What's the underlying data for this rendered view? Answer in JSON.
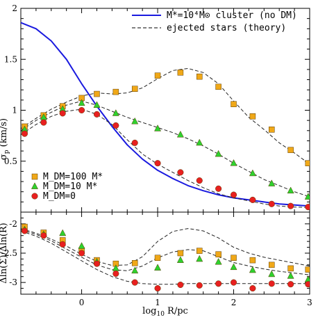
{
  "chart_data": [
    {
      "type": "scatter",
      "panel": "top",
      "xlabel": "",
      "ylabel": "σ_p (km/s)",
      "xlim": [
        -0.8,
        3.0
      ],
      "ylim": [
        0.0,
        2.0
      ],
      "x_ticks": [
        "0",
        "1",
        "2",
        "3"
      ],
      "y_ticks": [
        "0.5",
        "1",
        "1.5",
        "2"
      ],
      "legend_lines": [
        {
          "label": "M*=10⁴M⊙ cluster (no DM)",
          "style": "solid",
          "color": "#1a1adf"
        },
        {
          "label": "ejected stars (theory)",
          "style": "dashed",
          "color": "#000000"
        }
      ],
      "legend_markers": [
        {
          "label": "M_DM=100 M*",
          "marker": "square",
          "color": "#f0a818"
        },
        {
          "label": "M_DM=10 M*",
          "marker": "triangle",
          "color": "#2ed12e"
        },
        {
          "label": "M_DM=0",
          "marker": "circle",
          "color": "#e82020"
        }
      ],
      "series": [
        {
          "name": "M_DM=100 M*",
          "marker": "square",
          "x": [
            -0.75,
            -0.5,
            -0.25,
            0.0,
            0.2,
            0.45,
            0.7,
            1.0,
            1.3,
            1.55,
            1.8,
            2.0,
            2.25,
            2.5,
            2.75,
            2.98
          ],
          "y": [
            0.84,
            0.95,
            1.04,
            1.12,
            1.16,
            1.18,
            1.21,
            1.34,
            1.37,
            1.33,
            1.23,
            1.06,
            0.94,
            0.81,
            0.61,
            0.48
          ]
        },
        {
          "name": "M_DM=10 M*",
          "marker": "triangle",
          "x": [
            -0.75,
            -0.5,
            -0.25,
            0.0,
            0.2,
            0.45,
            0.7,
            1.0,
            1.3,
            1.55,
            1.8,
            2.0,
            2.25,
            2.5,
            2.75,
            2.98
          ],
          "y": [
            0.81,
            0.93,
            1.01,
            1.07,
            1.05,
            0.97,
            0.89,
            0.82,
            0.76,
            0.68,
            0.57,
            0.48,
            0.38,
            0.28,
            0.21,
            0.15
          ]
        },
        {
          "name": "M_DM=0",
          "marker": "circle",
          "x": [
            -0.75,
            -0.5,
            -0.25,
            0.0,
            0.2,
            0.45,
            0.7,
            1.0,
            1.3,
            1.55,
            1.8,
            2.0,
            2.25,
            2.5,
            2.75,
            2.98
          ],
          "y": [
            0.77,
            0.88,
            0.97,
            1.0,
            0.96,
            0.85,
            0.68,
            0.48,
            0.39,
            0.31,
            0.23,
            0.17,
            0.12,
            0.08,
            0.06,
            0.05
          ]
        },
        {
          "name": "M*=10⁴M⊙ cluster (no DM)",
          "line": "solid",
          "x": [
            -0.8,
            -0.6,
            -0.4,
            -0.2,
            0.0,
            0.2,
            0.4,
            0.6,
            0.8,
            1.0,
            1.2,
            1.4,
            1.6,
            1.8,
            2.0,
            2.2,
            2.4,
            2.6,
            2.8,
            3.0
          ],
          "y": [
            1.86,
            1.8,
            1.68,
            1.5,
            1.26,
            1.04,
            0.84,
            0.66,
            0.52,
            0.41,
            0.33,
            0.26,
            0.21,
            0.17,
            0.14,
            0.12,
            0.1,
            0.08,
            0.07,
            0.06
          ]
        },
        {
          "name": "",
          "line": "dashed",
          "x": [
            -0.8,
            -0.6,
            -0.4,
            -0.2,
            0.0,
            0.2,
            0.4,
            0.6,
            0.8,
            1.0,
            1.2,
            1.4,
            1.6,
            1.8,
            2.0,
            2.2,
            2.4,
            2.6,
            2.8,
            3.0
          ],
          "y": [
            0.82,
            0.92,
            1.01,
            1.08,
            1.14,
            1.17,
            1.16,
            1.17,
            1.22,
            1.31,
            1.39,
            1.41,
            1.37,
            1.26,
            1.09,
            0.93,
            0.81,
            0.68,
            0.58,
            0.47
          ]
        },
        {
          "name": "",
          "line": "dashed",
          "x": [
            -0.8,
            -0.6,
            -0.4,
            -0.2,
            0.0,
            0.2,
            0.4,
            0.6,
            0.8,
            1.0,
            1.2,
            1.4,
            1.6,
            1.8,
            2.0,
            2.2,
            2.4,
            2.6,
            2.8,
            3.0
          ],
          "y": [
            0.8,
            0.9,
            0.98,
            1.05,
            1.09,
            1.05,
            0.99,
            0.93,
            0.88,
            0.83,
            0.78,
            0.72,
            0.65,
            0.57,
            0.48,
            0.4,
            0.32,
            0.26,
            0.2,
            0.15
          ]
        },
        {
          "name": "",
          "line": "dashed",
          "x": [
            -0.8,
            -0.6,
            -0.4,
            -0.2,
            0.0,
            0.2,
            0.4,
            0.6,
            0.8,
            1.0,
            1.2,
            1.4,
            1.6,
            1.8,
            2.0,
            2.2,
            2.4,
            2.6,
            2.8,
            3.0
          ],
          "y": [
            0.76,
            0.86,
            0.94,
            0.99,
            1.01,
            0.96,
            0.86,
            0.71,
            0.57,
            0.47,
            0.39,
            0.31,
            0.24,
            0.18,
            0.14,
            0.11,
            0.08,
            0.06,
            0.05,
            0.045
          ]
        }
      ]
    },
    {
      "type": "scatter",
      "panel": "bottom",
      "xlabel": "log₁₀ R/pc",
      "ylabel": "Δln(Σ)/Δln(R)",
      "xlim": [
        -0.8,
        3.0
      ],
      "ylim": [
        -3.2,
        -1.8
      ],
      "x_ticks": [
        "0",
        "1",
        "2",
        "3"
      ],
      "y_ticks": [
        "-2",
        "-2.5",
        "-3"
      ],
      "series": [
        {
          "name": "M_DM=100 M*",
          "marker": "square",
          "x": [
            -0.75,
            -0.5,
            -0.25,
            0.0,
            0.2,
            0.45,
            0.7,
            1.0,
            1.3,
            1.55,
            1.8,
            2.0,
            2.25,
            2.5,
            2.75,
            2.98
          ],
          "y": [
            -2.05,
            -2.15,
            -2.28,
            -2.45,
            -2.62,
            -2.68,
            -2.67,
            -2.58,
            -2.5,
            -2.46,
            -2.52,
            -2.58,
            -2.62,
            -2.7,
            -2.76,
            -2.78
          ]
        },
        {
          "name": "M_DM=10 M*",
          "marker": "triangle",
          "x": [
            -0.75,
            -0.5,
            -0.25,
            0.0,
            0.2,
            0.45,
            0.7,
            1.0,
            1.3,
            1.55,
            1.8,
            2.0,
            2.25,
            2.5,
            2.75,
            2.98
          ],
          "y": [
            -2.1,
            -2.18,
            -2.16,
            -2.38,
            -2.65,
            -2.76,
            -2.8,
            -2.75,
            -2.62,
            -2.6,
            -2.65,
            -2.74,
            -2.79,
            -2.86,
            -2.89,
            -2.95
          ]
        },
        {
          "name": "M_DM=0",
          "marker": "circle",
          "x": [
            -0.75,
            -0.5,
            -0.25,
            0.0,
            0.2,
            0.45,
            0.7,
            1.0,
            1.3,
            1.55,
            1.8,
            2.0,
            2.25,
            2.5,
            2.75,
            2.98
          ],
          "y": [
            -2.12,
            -2.2,
            -2.35,
            -2.5,
            -2.68,
            -2.85,
            -3.0,
            -3.1,
            -3.04,
            -3.05,
            -3.02,
            -3.0,
            -3.1,
            -3.02,
            -3.03,
            -3.03
          ]
        },
        {
          "name": "",
          "line": "dashed",
          "x": [
            -0.8,
            -0.6,
            -0.4,
            -0.2,
            0.0,
            0.2,
            0.4,
            0.6,
            0.8,
            1.0,
            1.2,
            1.4,
            1.6,
            1.8,
            2.0,
            2.2,
            2.4,
            2.6,
            2.8,
            3.0
          ],
          "y": [
            -2.08,
            -2.16,
            -2.26,
            -2.38,
            -2.52,
            -2.64,
            -2.71,
            -2.7,
            -2.56,
            -2.3,
            -2.13,
            -2.08,
            -2.12,
            -2.24,
            -2.4,
            -2.5,
            -2.57,
            -2.62,
            -2.67,
            -2.72
          ]
        },
        {
          "name": "",
          "line": "dashed",
          "x": [
            -0.8,
            -0.6,
            -0.4,
            -0.2,
            0.0,
            0.2,
            0.4,
            0.6,
            0.8,
            1.0,
            1.2,
            1.4,
            1.6,
            1.8,
            2.0,
            2.2,
            2.4,
            2.6,
            2.8,
            3.0
          ],
          "y": [
            -2.1,
            -2.18,
            -2.29,
            -2.43,
            -2.57,
            -2.7,
            -2.78,
            -2.8,
            -2.72,
            -2.58,
            -2.48,
            -2.44,
            -2.46,
            -2.56,
            -2.66,
            -2.72,
            -2.77,
            -2.81,
            -2.84,
            -2.87
          ]
        },
        {
          "name": "",
          "line": "dashed",
          "x": [
            -0.8,
            -0.6,
            -0.4,
            -0.2,
            0.0,
            0.2,
            0.4,
            0.6,
            0.8,
            1.0,
            1.2,
            1.4,
            1.6,
            1.8,
            2.0,
            2.2,
            2.4,
            2.6,
            2.8,
            3.0
          ],
          "y": [
            -2.12,
            -2.21,
            -2.33,
            -2.48,
            -2.63,
            -2.78,
            -2.9,
            -2.98,
            -3.02,
            -3.03,
            -3.03,
            -3.02,
            -3.02,
            -3.02,
            -3.02,
            -3.02,
            -3.02,
            -3.02,
            -3.02,
            -3.02
          ]
        }
      ]
    }
  ]
}
